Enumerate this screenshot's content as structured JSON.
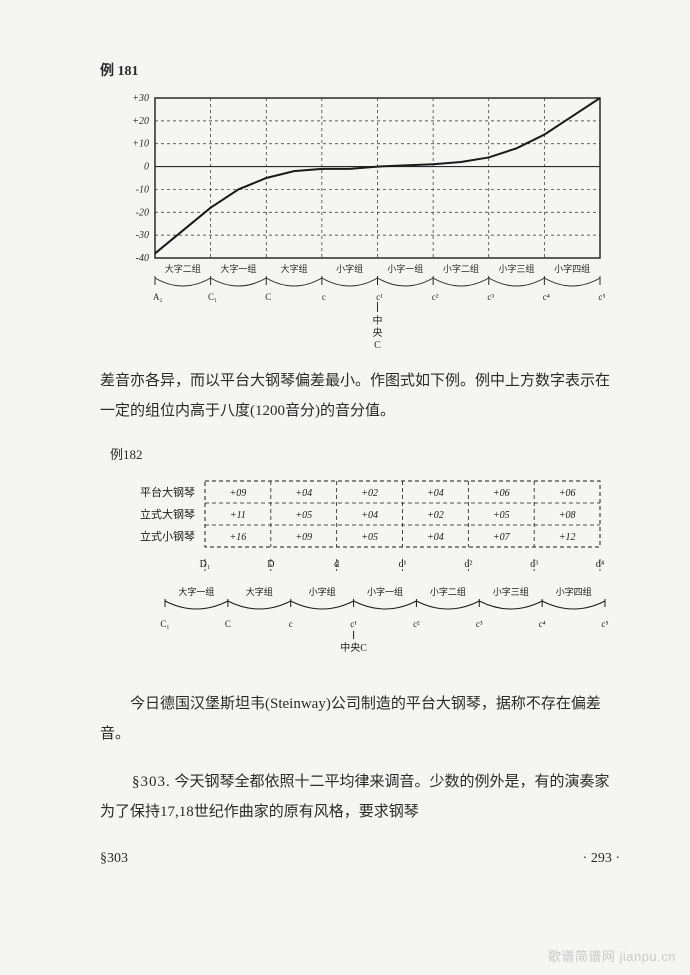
{
  "example181": {
    "label": "例  181",
    "chart": {
      "type": "line",
      "ylim": [
        -40,
        30
      ],
      "yticks": [
        30,
        20,
        10,
        0,
        -10,
        -20,
        -30,
        -40
      ],
      "ytick_labels": [
        "+30",
        "+20",
        "+10",
        "0",
        "-10",
        "-20",
        "-30",
        "-40"
      ],
      "x_groups": [
        "大字二组",
        "大字一组",
        "大字组",
        "小字组",
        "小字一组",
        "小字二组",
        "小字三组",
        "小字四组"
      ],
      "x_notes": [
        "A₂",
        "C₁",
        "C",
        "c",
        "c¹",
        "c²",
        "c³",
        "c⁴",
        "c⁵"
      ],
      "center_label_1": "中",
      "center_label_2": "央",
      "center_note": "C",
      "curve_points": [
        [
          0,
          -38
        ],
        [
          0.5,
          -28
        ],
        [
          1,
          -18
        ],
        [
          1.5,
          -10
        ],
        [
          2,
          -5
        ],
        [
          2.5,
          -2
        ],
        [
          3,
          -1
        ],
        [
          3.5,
          -1
        ],
        [
          4,
          0
        ],
        [
          4.5,
          0.5
        ],
        [
          5,
          1
        ],
        [
          5.5,
          2
        ],
        [
          6,
          4
        ],
        [
          6.5,
          8
        ],
        [
          7,
          14
        ],
        [
          7.5,
          22
        ],
        [
          8,
          30
        ]
      ],
      "line_color": "#1a1a1a",
      "grid_color": "#2a2a2a",
      "bg_color": "#f5f5f2"
    }
  },
  "paragraph1": "差音亦各异，而以平台大钢琴偏差最小。作图式如下例。例中上方数字表示在一定的组位内高于八度(1200音分)的音分值。",
  "example182": {
    "label": "例182",
    "table": {
      "type": "table",
      "row_labels": [
        "平台大钢琴",
        "立式大钢琴",
        "立式小钢琴"
      ],
      "columns_top": [
        "D₁",
        "D",
        "d",
        "d¹",
        "d²",
        "d³",
        "d⁴"
      ],
      "rows": [
        [
          "+09",
          "+04",
          "+02",
          "+04",
          "+06",
          "+06"
        ],
        [
          "+11",
          "+05",
          "+04",
          "+02",
          "+05",
          "+08"
        ],
        [
          "+16",
          "+09",
          "+05",
          "+04",
          "+07",
          "+12"
        ]
      ],
      "x_groups": [
        "大字一组",
        "大字组",
        "小字组",
        "小字一组",
        "小字二组",
        "小字三组",
        "小字四组"
      ],
      "x_notes": [
        "C₁",
        "C",
        "c",
        "c¹",
        "c²",
        "c³",
        "c⁴",
        "c⁵"
      ],
      "center_label": "中央C",
      "border_color": "#1a1a1a",
      "cell_font_size": 10
    }
  },
  "paragraph2": "　　今日德国汉堡斯坦韦(Steinway)公司制造的平台大钢琴，据称不存在偏差音。",
  "paragraph3_sect": "§303.",
  "paragraph3": "今天钢琴全都依照十二平均律来调音。少数的例外是，有的演奏家为了保持17,18世纪作曲家的原有风格，要求钢琴",
  "footer_left": "§303",
  "footer_right": "· 293 ·",
  "watermark": "歌谱简谱网 jianpu.cn"
}
